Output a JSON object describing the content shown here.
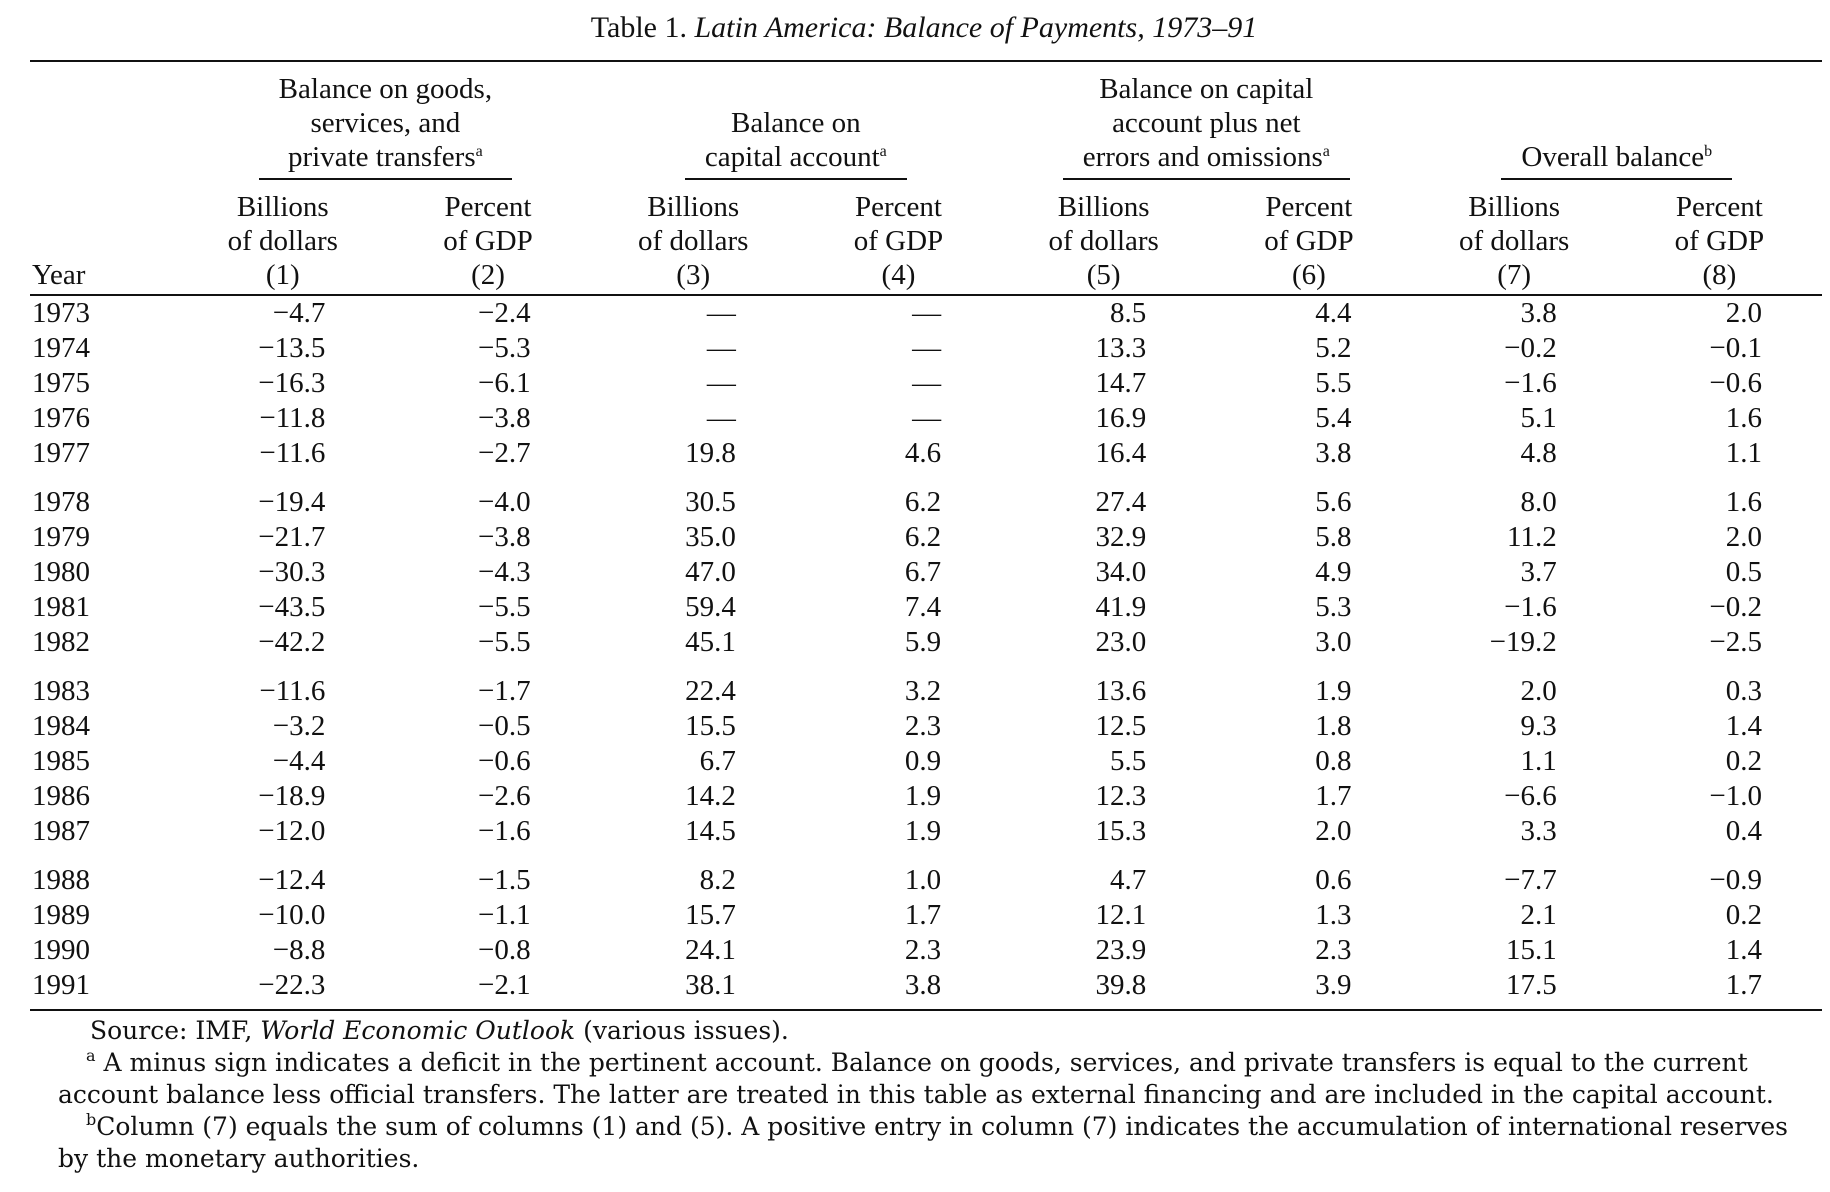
{
  "title": {
    "prefix": "Table 1.",
    "main": "Latin America: Balance of Payments, 1973–91"
  },
  "groups": [
    {
      "line1": "Balance on goods,",
      "line2": "services, and",
      "line3": "private transfers",
      "note": "a"
    },
    {
      "line1": "",
      "line2": "Balance on",
      "line3": "capital account",
      "note": "a"
    },
    {
      "line1": "Balance on capital",
      "line2": "account plus net",
      "line3": "errors and omissions",
      "note": "a"
    },
    {
      "line1": "",
      "line2": "",
      "line3": "Overall balance",
      "note": "b"
    }
  ],
  "year_header": "Year",
  "subheaders": [
    {
      "l1": "Billions",
      "l2": "of dollars",
      "num": "(1)"
    },
    {
      "l1": "Percent",
      "l2": "of GDP",
      "num": "(2)"
    },
    {
      "l1": "Billions",
      "l2": "of dollars",
      "num": "(3)"
    },
    {
      "l1": "Percent",
      "l2": "of GDP",
      "num": "(4)"
    },
    {
      "l1": "Billions",
      "l2": "of dollars",
      "num": "(5)"
    },
    {
      "l1": "Percent",
      "l2": "of GDP",
      "num": "(6)"
    },
    {
      "l1": "Billions",
      "l2": "of dollars",
      "num": "(7)"
    },
    {
      "l1": "Percent",
      "l2": "of GDP",
      "num": "(8)"
    }
  ],
  "rows": [
    [
      "1973",
      "−4.7",
      "−2.4",
      "—",
      "—",
      "8.5",
      "4.4",
      "3.8",
      "2.0"
    ],
    [
      "1974",
      "−13.5",
      "−5.3",
      "—",
      "—",
      "13.3",
      "5.2",
      "−0.2",
      "−0.1"
    ],
    [
      "1975",
      "−16.3",
      "−6.1",
      "—",
      "—",
      "14.7",
      "5.5",
      "−1.6",
      "−0.6"
    ],
    [
      "1976",
      "−11.8",
      "−3.8",
      "—",
      "—",
      "16.9",
      "5.4",
      "5.1",
      "1.6"
    ],
    [
      "1977",
      "−11.6",
      "−2.7",
      "19.8",
      "4.6",
      "16.4",
      "3.8",
      "4.8",
      "1.1"
    ],
    [
      "1978",
      "−19.4",
      "−4.0",
      "30.5",
      "6.2",
      "27.4",
      "5.6",
      "8.0",
      "1.6"
    ],
    [
      "1979",
      "−21.7",
      "−3.8",
      "35.0",
      "6.2",
      "32.9",
      "5.8",
      "11.2",
      "2.0"
    ],
    [
      "1980",
      "−30.3",
      "−4.3",
      "47.0",
      "6.7",
      "34.0",
      "4.9",
      "3.7",
      "0.5"
    ],
    [
      "1981",
      "−43.5",
      "−5.5",
      "59.4",
      "7.4",
      "41.9",
      "5.3",
      "−1.6",
      "−0.2"
    ],
    [
      "1982",
      "−42.2",
      "−5.5",
      "45.1",
      "5.9",
      "23.0",
      "3.0",
      "−19.2",
      "−2.5"
    ],
    [
      "1983",
      "−11.6",
      "−1.7",
      "22.4",
      "3.2",
      "13.6",
      "1.9",
      "2.0",
      "0.3"
    ],
    [
      "1984",
      "−3.2",
      "−0.5",
      "15.5",
      "2.3",
      "12.5",
      "1.8",
      "9.3",
      "1.4"
    ],
    [
      "1985",
      "−4.4",
      "−0.6",
      "6.7",
      "0.9",
      "5.5",
      "0.8",
      "1.1",
      "0.2"
    ],
    [
      "1986",
      "−18.9",
      "−2.6",
      "14.2",
      "1.9",
      "12.3",
      "1.7",
      "−6.6",
      "−1.0"
    ],
    [
      "1987",
      "−12.0",
      "−1.6",
      "14.5",
      "1.9",
      "15.3",
      "2.0",
      "3.3",
      "0.4"
    ],
    [
      "1988",
      "−12.4",
      "−1.5",
      "8.2",
      "1.0",
      "4.7",
      "0.6",
      "−7.7",
      "−0.9"
    ],
    [
      "1989",
      "−10.0",
      "−1.1",
      "15.7",
      "1.7",
      "12.1",
      "1.3",
      "2.1",
      "0.2"
    ],
    [
      "1990",
      "−8.8",
      "−0.8",
      "24.1",
      "2.3",
      "23.9",
      "2.3",
      "15.1",
      "1.4"
    ],
    [
      "1991",
      "−22.3",
      "−2.1",
      "38.1",
      "3.8",
      "39.8",
      "3.9",
      "17.5",
      "1.7"
    ]
  ],
  "notes": {
    "source_prefix": "Source: IMF, ",
    "source_title": "World Economic Outlook",
    "source_suffix": " (various issues).",
    "a_mark": "a",
    "a_text": " A minus sign indicates a deficit in the pertinent account. Balance on goods, services, and private transfers is equal to the current account balance less official transfers. The latter are treated in this table as external financing and are included in the capital account.",
    "b_mark": "b",
    "b_text": "Column (7) equals the sum of columns (1) and (5). A positive entry in column (7) indicates the accumulation of international reserves by the monetary authorities."
  }
}
